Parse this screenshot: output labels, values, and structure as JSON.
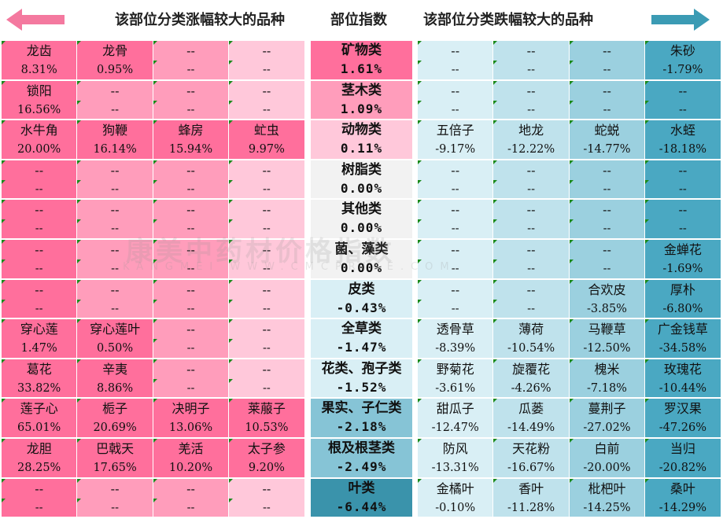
{
  "header": {
    "left_title": "该部位分类涨幅较大的品种",
    "center_title": "部位指数",
    "right_title": "该部位分类跌幅较大的品种"
  },
  "colors": {
    "gain_dark": "#ff6f9c",
    "gain_mid": "#ff9dbb",
    "gain_light": "#ffc8da",
    "loss_dark": "#4aa8c2",
    "loss_mid": "#9bd0df",
    "loss_light": "#d9eff5",
    "neutral": "#f2f2f2",
    "arrow_left": "#f4799f",
    "arrow_right": "#3b9bb4"
  },
  "watermark": {
    "main": "康美中药材价格指数",
    "sub": "KANGMEI WWW.CMCPRICE.COM"
  },
  "chart_data": {
    "type": "table",
    "categories": [
      {
        "name": "矿物类",
        "index": "1.61%",
        "index_value": 1.61,
        "up": [
          {
            "name": "龙齿",
            "pct": "8.31%"
          },
          {
            "name": "龙骨",
            "pct": "0.95%"
          },
          {
            "name": "--",
            "pct": "--"
          },
          {
            "name": "--",
            "pct": "--"
          }
        ],
        "down": [
          {
            "name": "--",
            "pct": "--"
          },
          {
            "name": "--",
            "pct": "--"
          },
          {
            "name": "--",
            "pct": "--"
          },
          {
            "name": "朱砂",
            "pct": "-1.79%"
          }
        ]
      },
      {
        "name": "茎木类",
        "index": "1.09%",
        "index_value": 1.09,
        "up": [
          {
            "name": "锁阳",
            "pct": "16.56%"
          },
          {
            "name": "--",
            "pct": "--"
          },
          {
            "name": "--",
            "pct": "--"
          },
          {
            "name": "--",
            "pct": "--"
          }
        ],
        "down": [
          {
            "name": "--",
            "pct": "--"
          },
          {
            "name": "--",
            "pct": "--"
          },
          {
            "name": "--",
            "pct": "--"
          },
          {
            "name": "--",
            "pct": "--"
          }
        ]
      },
      {
        "name": "动物类",
        "index": "0.11%",
        "index_value": 0.11,
        "up": [
          {
            "name": "水牛角",
            "pct": "20.00%"
          },
          {
            "name": "狗鞭",
            "pct": "16.14%"
          },
          {
            "name": "蜂房",
            "pct": "15.94%"
          },
          {
            "name": "虻虫",
            "pct": "9.97%"
          }
        ],
        "down": [
          {
            "name": "五倍子",
            "pct": "-9.17%"
          },
          {
            "name": "地龙",
            "pct": "-12.22%"
          },
          {
            "name": "蛇蜕",
            "pct": "-14.77%"
          },
          {
            "name": "水蛭",
            "pct": "-18.18%"
          }
        ]
      },
      {
        "name": "树脂类",
        "index": "0.00%",
        "index_value": 0.0,
        "up": [
          {
            "name": "--",
            "pct": "--"
          },
          {
            "name": "--",
            "pct": "--"
          },
          {
            "name": "--",
            "pct": "--"
          },
          {
            "name": "--",
            "pct": "--"
          }
        ],
        "down": [
          {
            "name": "--",
            "pct": "--"
          },
          {
            "name": "--",
            "pct": "--"
          },
          {
            "name": "--",
            "pct": "--"
          },
          {
            "name": "--",
            "pct": "--"
          }
        ]
      },
      {
        "name": "其他类",
        "index": "0.00%",
        "index_value": 0.0,
        "up": [
          {
            "name": "--",
            "pct": "--"
          },
          {
            "name": "--",
            "pct": "--"
          },
          {
            "name": "--",
            "pct": "--"
          },
          {
            "name": "--",
            "pct": "--"
          }
        ],
        "down": [
          {
            "name": "--",
            "pct": "--"
          },
          {
            "name": "--",
            "pct": "--"
          },
          {
            "name": "--",
            "pct": "--"
          },
          {
            "name": "--",
            "pct": "--"
          }
        ]
      },
      {
        "name": "菌、藻类",
        "index": "0.00%",
        "index_value": 0.0,
        "up": [
          {
            "name": "--",
            "pct": "--"
          },
          {
            "name": "--",
            "pct": "--"
          },
          {
            "name": "--",
            "pct": "--"
          },
          {
            "name": "--",
            "pct": "--"
          }
        ],
        "down": [
          {
            "name": "--",
            "pct": "--"
          },
          {
            "name": "--",
            "pct": "--"
          },
          {
            "name": "--",
            "pct": "--"
          },
          {
            "name": "金蝉花",
            "pct": "-1.69%"
          }
        ]
      },
      {
        "name": "皮类",
        "index": "-0.43%",
        "index_value": -0.43,
        "up": [
          {
            "name": "--",
            "pct": "--"
          },
          {
            "name": "--",
            "pct": "--"
          },
          {
            "name": "--",
            "pct": "--"
          },
          {
            "name": "--",
            "pct": "--"
          }
        ],
        "down": [
          {
            "name": "--",
            "pct": "--"
          },
          {
            "name": "--",
            "pct": "--"
          },
          {
            "name": "合欢皮",
            "pct": "-3.85%"
          },
          {
            "name": "厚朴",
            "pct": "-6.80%"
          }
        ]
      },
      {
        "name": "全草类",
        "index": "-1.47%",
        "index_value": -1.47,
        "up": [
          {
            "name": "穿心莲",
            "pct": "1.47%"
          },
          {
            "name": "穿心莲叶",
            "pct": "0.50%"
          },
          {
            "name": "--",
            "pct": "--"
          },
          {
            "name": "--",
            "pct": "--"
          }
        ],
        "down": [
          {
            "name": "透骨草",
            "pct": "-8.39%"
          },
          {
            "name": "薄荷",
            "pct": "-10.54%"
          },
          {
            "name": "马鞭草",
            "pct": "-12.50%"
          },
          {
            "name": "广金钱草",
            "pct": "-34.58%"
          }
        ]
      },
      {
        "name": "花类、孢子类",
        "index": "-1.52%",
        "index_value": -1.52,
        "up": [
          {
            "name": "葛花",
            "pct": "33.82%"
          },
          {
            "name": "辛夷",
            "pct": "8.86%"
          },
          {
            "name": "--",
            "pct": "--"
          },
          {
            "name": "--",
            "pct": "--"
          }
        ],
        "down": [
          {
            "name": "野菊花",
            "pct": "-3.61%"
          },
          {
            "name": "旋覆花",
            "pct": "-4.26%"
          },
          {
            "name": "槐米",
            "pct": "-7.18%"
          },
          {
            "name": "玫瑰花",
            "pct": "-10.44%"
          }
        ]
      },
      {
        "name": "果实、子仁类",
        "index": "-2.18%",
        "index_value": -2.18,
        "up": [
          {
            "name": "莲子心",
            "pct": "65.01%"
          },
          {
            "name": "栀子",
            "pct": "20.69%"
          },
          {
            "name": "决明子",
            "pct": "13.06%"
          },
          {
            "name": "莱菔子",
            "pct": "10.53%"
          }
        ],
        "down": [
          {
            "name": "甜瓜子",
            "pct": "-12.47%"
          },
          {
            "name": "瓜蒌",
            "pct": "-14.49%"
          },
          {
            "name": "蔓荆子",
            "pct": "-27.02%"
          },
          {
            "name": "罗汉果",
            "pct": "-47.26%"
          }
        ]
      },
      {
        "name": "根及根茎类",
        "index": "-2.49%",
        "index_value": -2.49,
        "up": [
          {
            "name": "龙胆",
            "pct": "28.25%"
          },
          {
            "name": "巴戟天",
            "pct": "17.65%"
          },
          {
            "name": "羌活",
            "pct": "10.20%"
          },
          {
            "name": "太子参",
            "pct": "9.20%"
          }
        ],
        "down": [
          {
            "name": "防风",
            "pct": "-13.31%"
          },
          {
            "name": "天花粉",
            "pct": "-16.67%"
          },
          {
            "name": "白前",
            "pct": "-20.00%"
          },
          {
            "name": "当归",
            "pct": "-20.82%"
          }
        ]
      },
      {
        "name": "叶类",
        "index": "-6.44%",
        "index_value": -6.44,
        "up": [
          {
            "name": "--",
            "pct": "--"
          },
          {
            "name": "--",
            "pct": "--"
          },
          {
            "name": "--",
            "pct": "--"
          },
          {
            "name": "--",
            "pct": "--"
          }
        ],
        "down": [
          {
            "name": "金橘叶",
            "pct": "-0.10%"
          },
          {
            "name": "香叶",
            "pct": "-11.28%"
          },
          {
            "name": "枇杷叶",
            "pct": "-14.25%"
          },
          {
            "name": "桑叶",
            "pct": "-14.29%"
          }
        ]
      }
    ]
  }
}
